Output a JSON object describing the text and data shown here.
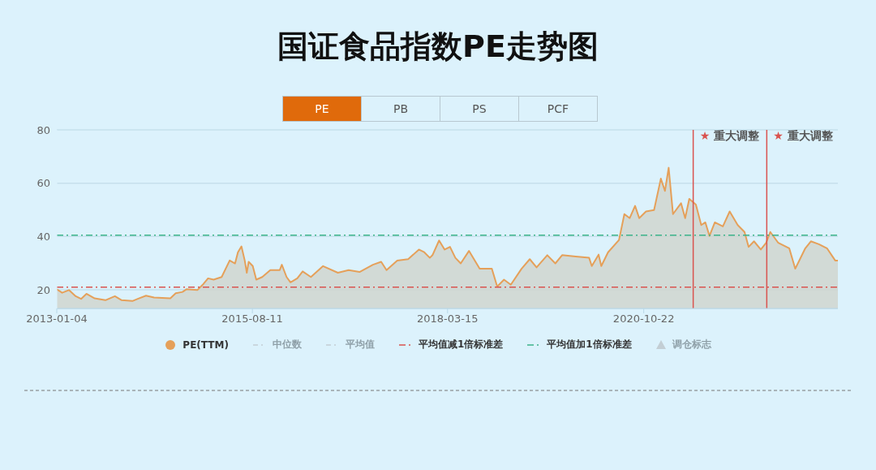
{
  "chart_data": {
    "type": "area",
    "title": "国证食品指数PE走势图",
    "x": [
      "2013-01-04",
      "2013-01-30",
      "2013-03-04",
      "2013-04-06",
      "2013-05-02",
      "2013-05-28",
      "2013-07-07",
      "2013-08-28",
      "2013-10-13",
      "2013-11-15",
      "2014-01-06",
      "2014-02-01",
      "2014-03-13",
      "2014-04-21",
      "2014-07-09",
      "2014-08-04",
      "2014-09-06",
      "2014-09-25",
      "2014-11-17",
      "2014-12-13",
      "2015-01-08",
      "2015-02-04",
      "2015-03-15",
      "2015-04-23",
      "2015-05-19",
      "2015-06-02",
      "2015-06-19",
      "2015-07-05",
      "2015-07-15",
      "2015-07-24",
      "2015-08-13",
      "2015-08-30",
      "2015-09-28",
      "2015-11-06",
      "2015-12-22",
      "2016-01-01",
      "2016-01-24",
      "2016-02-12",
      "2016-03-16",
      "2016-04-11",
      "2016-05-21",
      "2016-07-19",
      "2016-09-29",
      "2016-11-20",
      "2017-01-12",
      "2017-03-18",
      "2017-04-27",
      "2017-05-23",
      "2017-07-14",
      "2017-09-05",
      "2017-10-27",
      "2017-11-22",
      "2017-12-19",
      "2018-01-01",
      "2018-02-02",
      "2018-03-01",
      "2018-03-27",
      "2018-04-22",
      "2018-05-18",
      "2018-06-27",
      "2018-08-18",
      "2018-10-16",
      "2018-11-11",
      "2018-12-14",
      "2019-01-16",
      "2019-03-09",
      "2019-04-18",
      "2019-05-21",
      "2019-07-12",
      "2019-08-20",
      "2019-09-22",
      "2019-11-27",
      "2020-01-31",
      "2020-02-13",
      "2020-03-17",
      "2020-03-30",
      "2020-05-02",
      "2020-06-24",
      "2020-07-20",
      "2020-08-15",
      "2020-09-10",
      "2020-09-30",
      "2020-11-02",
      "2020-12-11",
      "2021-01-13",
      "2021-02-02",
      "2021-02-20",
      "2021-03-13",
      "2021-04-21",
      "2021-05-11",
      "2021-05-31",
      "2021-07-02",
      "2021-07-28",
      "2021-08-17",
      "2021-09-06",
      "2021-10-02",
      "2021-11-10",
      "2021-12-13",
      "2022-01-21",
      "2022-02-23",
      "2022-03-15",
      "2022-04-10",
      "2022-05-13",
      "2022-06-08",
      "2022-06-28",
      "2022-08-06",
      "2022-09-28",
      "2022-10-27",
      "2022-11-19",
      "2022-12-15",
      "2023-01-11",
      "2023-02-19",
      "2023-03-30",
      "2023-05-09",
      "2023-05-22"
    ],
    "series": [
      {
        "name": "PE(TTM)",
        "color": "#e5a05a",
        "values": [
          20.2,
          18.9,
          19.9,
          17.6,
          16.6,
          18.5,
          16.8,
          16.1,
          17.6,
          16.1,
          15.8,
          16.6,
          17.8,
          17.1,
          16.8,
          18.7,
          19.2,
          20.2,
          19.9,
          21.9,
          24.3,
          23.8,
          24.8,
          31.0,
          29.9,
          34.1,
          36.3,
          31.0,
          26.4,
          30.5,
          28.9,
          23.8,
          24.8,
          27.4,
          27.4,
          29.4,
          24.8,
          22.8,
          24.3,
          26.9,
          24.8,
          28.9,
          26.4,
          27.4,
          26.7,
          29.4,
          30.5,
          27.4,
          31.0,
          31.5,
          35.1,
          34.1,
          32.0,
          33.0,
          38.5,
          35.1,
          36.1,
          32.0,
          29.9,
          34.6,
          27.9,
          27.9,
          21.2,
          23.8,
          21.9,
          27.9,
          31.5,
          28.4,
          33.0,
          29.9,
          33.0,
          32.5,
          32.0,
          28.9,
          33.2,
          28.9,
          34.1,
          38.7,
          48.4,
          46.9,
          51.5,
          46.9,
          49.4,
          49.9,
          61.7,
          57.1,
          65.8,
          48.4,
          52.5,
          46.9,
          54.1,
          52.0,
          44.3,
          45.3,
          40.2,
          45.3,
          43.8,
          49.4,
          44.3,
          41.7,
          36.1,
          38.2,
          35.1,
          37.6,
          41.7,
          37.6,
          35.6,
          27.9,
          31.5,
          35.6,
          38.2,
          37.1,
          35.6,
          31.0,
          31.0
        ]
      }
    ],
    "xlim": [
      "2013-01-04",
      "2023-05-22"
    ],
    "xticks": [
      "2013-01-04",
      "2015-08-11",
      "2018-03-15",
      "2020-10-22"
    ],
    "ylim": [
      13,
      80
    ],
    "yticks": [
      20,
      40,
      60,
      80
    ],
    "grid": "y",
    "legend": "bottom",
    "ref_lines": [
      {
        "axis": "y",
        "value": 21,
        "label": "平均值减1倍标准差",
        "color": "#d9534f",
        "line_style": "dashed"
      },
      {
        "axis": "y",
        "value": 40.5,
        "label": "平均值加1倍标准差",
        "color": "#3cb38a",
        "line_style": "dashed"
      },
      {
        "axis": "x",
        "value": "2021-06-19",
        "label": "★ 重大调整",
        "color": "#d9534f",
        "line_style": "solid"
      },
      {
        "axis": "x",
        "value": "2022-06-11",
        "label": "★ 重大调整",
        "color": "#d9534f",
        "line_style": "solid"
      }
    ],
    "annotations": [
      "PE",
      "PB",
      "PS",
      "PCF",
      "中位数",
      "平均值",
      "调仓标志"
    ]
  }
}
